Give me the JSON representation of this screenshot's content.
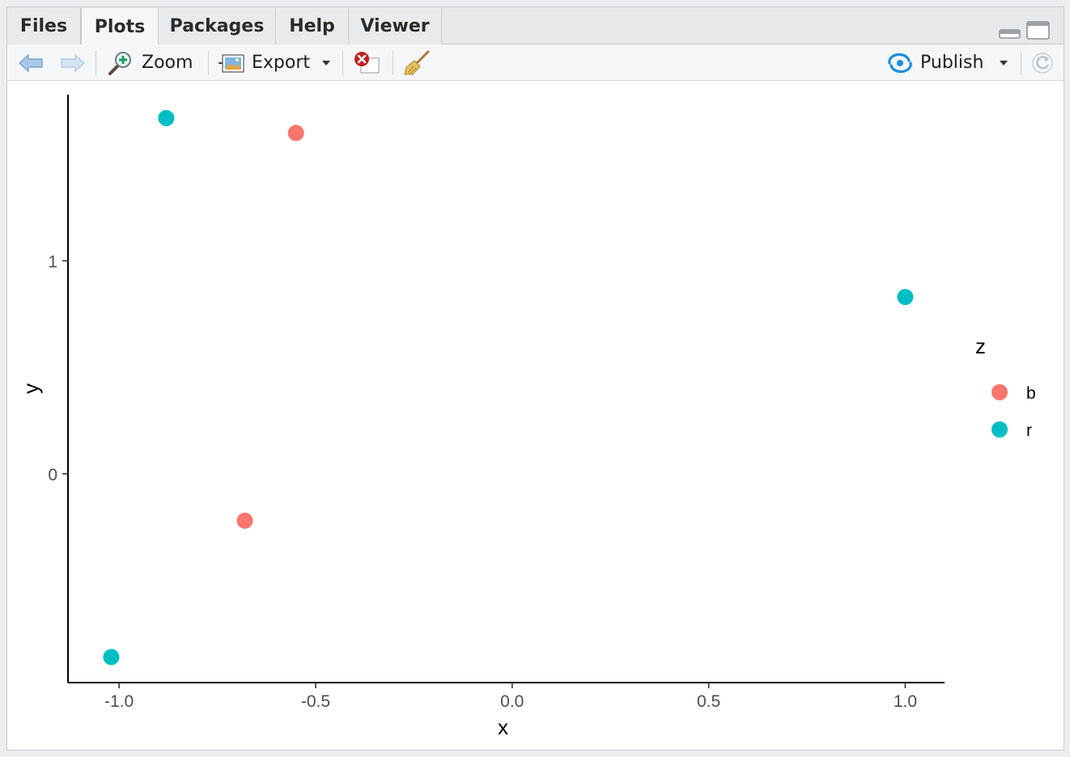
{
  "tabs": [
    {
      "label": "Files",
      "active": false
    },
    {
      "label": "Plots",
      "active": true
    },
    {
      "label": "Packages",
      "active": false
    },
    {
      "label": "Help",
      "active": false
    },
    {
      "label": "Viewer",
      "active": false
    }
  ],
  "toolbar": {
    "zoom_label": "Zoom",
    "export_label": "Export",
    "publish_label": "Publish"
  },
  "icons": {
    "back": "back-arrow-icon",
    "forward": "forward-arrow-icon",
    "zoom": "zoom-magnifier-icon",
    "export": "export-image-icon",
    "remove": "remove-plot-icon",
    "clear": "broom-icon",
    "publish": "publish-icon",
    "refresh": "refresh-icon",
    "minimize": "minimize-icon",
    "maximize": "maximize-icon"
  },
  "colors": {
    "b": "#f8766d",
    "r": "#00bfc4",
    "publish_accent": "#1a8fdc"
  },
  "chart_data": {
    "type": "scatter",
    "title": "",
    "xlabel": "x",
    "ylabel": "y",
    "xlim": [
      -1.13,
      1.1
    ],
    "ylim": [
      -0.98,
      1.78
    ],
    "xticks": [
      -1.0,
      -0.5,
      0.0,
      0.5,
      1.0
    ],
    "xtick_labels": [
      "-1.0",
      "-0.5",
      "0.0",
      "0.5",
      "1.0"
    ],
    "yticks": [
      0,
      1
    ],
    "ytick_labels": [
      "0",
      "1"
    ],
    "grid": false,
    "legend": {
      "title": "z",
      "position": "right",
      "entries": [
        {
          "label": "b",
          "color": "#f8766d"
        },
        {
          "label": "r",
          "color": "#00bfc4"
        }
      ]
    },
    "series": [
      {
        "name": "b",
        "color": "#f8766d",
        "points": [
          [
            -0.55,
            1.6
          ],
          [
            -0.68,
            -0.22
          ]
        ]
      },
      {
        "name": "r",
        "color": "#00bfc4",
        "points": [
          [
            -0.88,
            1.67
          ],
          [
            1.0,
            0.83
          ],
          [
            -1.02,
            -0.86
          ]
        ]
      }
    ]
  }
}
